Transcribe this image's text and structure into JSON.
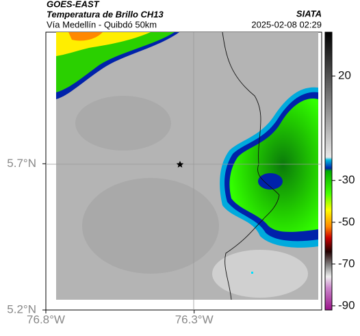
{
  "header": {
    "source": "GOES-EAST",
    "product": "Temperatura de Brillo CH13",
    "region": "Vía Medellín - Quibdó 50km",
    "agency": "SIATA",
    "timestamp": "2025-02-08 02:29"
  },
  "map": {
    "latlim": [
      5.2,
      6.15
    ],
    "lonlim": [
      -76.8,
      -75.87
    ],
    "lat_ticks": [
      {
        "value": 5.7,
        "label": "5.7°N"
      },
      {
        "value": 5.2,
        "label": "5.2°N"
      }
    ],
    "lon_ticks": [
      {
        "value": -76.8,
        "label": "76.8°W"
      },
      {
        "value": -76.3,
        "label": "76.3°W"
      }
    ]
  },
  "colorbar": {
    "lim": [
      -92,
      41
    ],
    "ticks": [
      20,
      -30,
      -50,
      -70,
      -90
    ]
  }
}
